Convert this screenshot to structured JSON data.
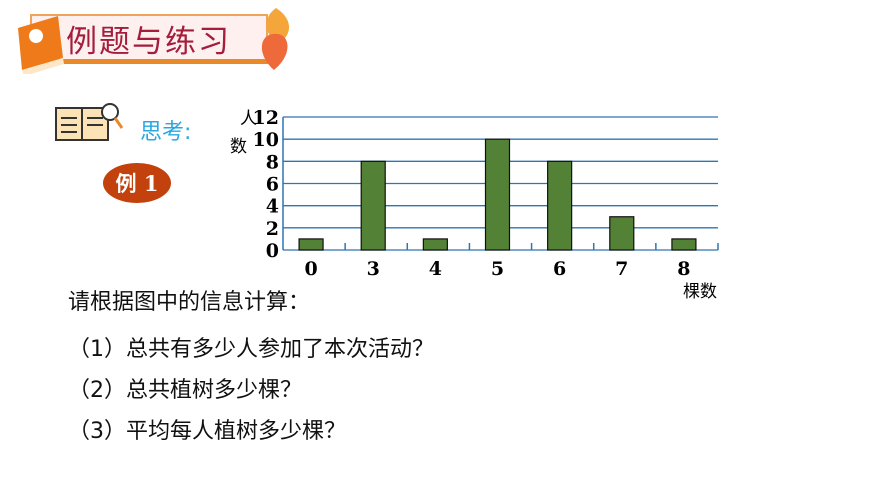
{
  "header": {
    "title": "例题与练习"
  },
  "think_label": "思考:",
  "example_badge": "例 1",
  "questions": {
    "intro": "请根据图中的信息计算：",
    "q1": "（1）总共有多少人参加了本次活动？",
    "q2": "（2）总共植树多少棵？",
    "q3": "（3）平均每人植树多少棵？"
  },
  "colors": {
    "bar": "#538135",
    "grid": "#2e75b6",
    "banner_text": "#a51d3c",
    "think": "#29a8e0",
    "badge": "#c2410c"
  },
  "chart_data": {
    "type": "bar",
    "categories": [
      "0",
      "3",
      "4",
      "5",
      "6",
      "7",
      "8"
    ],
    "values": [
      1,
      8,
      1,
      10,
      8,
      3,
      1
    ],
    "ylabel": "人数",
    "xlabel": "棵数",
    "ylim": [
      0,
      12
    ],
    "yticks": [
      "0",
      "2",
      "4",
      "6",
      "8",
      "10",
      "12"
    ],
    "grid": true
  }
}
